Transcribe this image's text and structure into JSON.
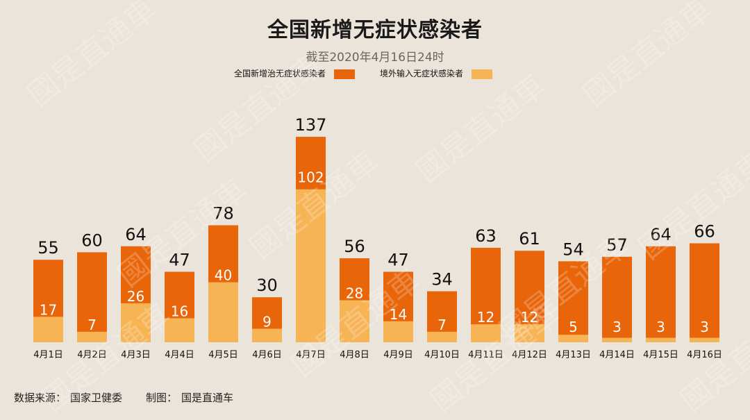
{
  "header": {
    "title": "全国新增无症状感染者",
    "subtitle": "截至2020年4月16日24时"
  },
  "colors": {
    "domestic": "#e8650a",
    "imported": "#f6b455",
    "background": "#ebe4da"
  },
  "chart_data": {
    "type": "bar",
    "stacked": true,
    "legend": [
      {
        "name": "全国新增治无症状感染者",
        "color": "#e8650a"
      },
      {
        "name": "境外输入无症状感染者",
        "color": "#f6b455"
      }
    ],
    "categories": [
      "4月1日",
      "4月2日",
      "4月3日",
      "4月4日",
      "4月5日",
      "4月6日",
      "4月7日",
      "4月8日",
      "4月9日",
      "4月10日",
      "4月11日",
      "4月12日",
      "4月13日",
      "4月14日",
      "4月15日",
      "4月16日"
    ],
    "series": [
      {
        "name": "全国新增治无症状感染者",
        "values": [
          55,
          60,
          64,
          47,
          78,
          30,
          137,
          56,
          47,
          34,
          63,
          61,
          54,
          57,
          64,
          66
        ]
      },
      {
        "name": "境外输入无症状感染者",
        "values": [
          17,
          7,
          26,
          16,
          40,
          9,
          102,
          28,
          14,
          7,
          12,
          12,
          5,
          3,
          3,
          3
        ]
      }
    ],
    "legend_position": "top",
    "grid": false
  },
  "footer": {
    "source_label": "数据来源：",
    "source_value": "国家卫健委",
    "maker_label": "制图：",
    "maker_value": "国是直通车"
  },
  "watermark": "國是直通車"
}
